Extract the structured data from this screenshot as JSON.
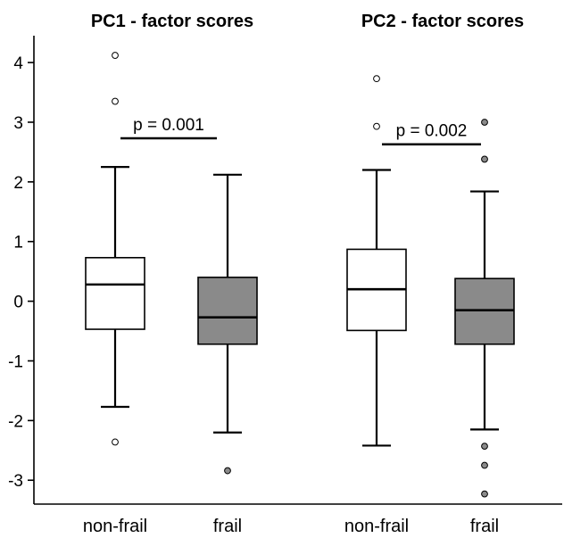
{
  "chart_data": {
    "type": "box",
    "ylim": [
      -3.4,
      4.45
    ],
    "yticks": [
      -3,
      -2,
      -1,
      0,
      1,
      2,
      3,
      4
    ],
    "colors": {
      "non-frail": "#ffffff",
      "frail": "#8a8a8a",
      "axis": "#000000"
    },
    "panels": [
      {
        "title": "PC1 - factor scores",
        "p_value": "p = 0.001",
        "bracket_y": 2.73,
        "groups": [
          {
            "category": "non-frail",
            "fill": "non-frail",
            "whisker_low": -1.77,
            "q1": -0.47,
            "median": 0.28,
            "q3": 0.73,
            "whisker_high": 2.25,
            "outliers": [
              4.12,
              3.35,
              -2.36
            ]
          },
          {
            "category": "frail",
            "fill": "frail",
            "whisker_low": -2.2,
            "q1": -0.72,
            "median": -0.27,
            "q3": 0.4,
            "whisker_high": 2.12,
            "outliers": [
              -2.84
            ]
          }
        ]
      },
      {
        "title": "PC2 - factor scores",
        "p_value": "p = 0.002",
        "bracket_y": 2.63,
        "groups": [
          {
            "category": "non-frail",
            "fill": "non-frail",
            "whisker_low": -2.42,
            "q1": -0.49,
            "median": 0.2,
            "q3": 0.87,
            "whisker_high": 2.2,
            "outliers": [
              3.73,
              2.93
            ]
          },
          {
            "category": "frail",
            "fill": "frail",
            "whisker_low": -2.15,
            "q1": -0.72,
            "median": -0.15,
            "q3": 0.38,
            "whisker_high": 1.84,
            "outliers": [
              3.0,
              2.38,
              -2.43,
              -2.75,
              -3.23
            ]
          }
        ]
      }
    ]
  }
}
